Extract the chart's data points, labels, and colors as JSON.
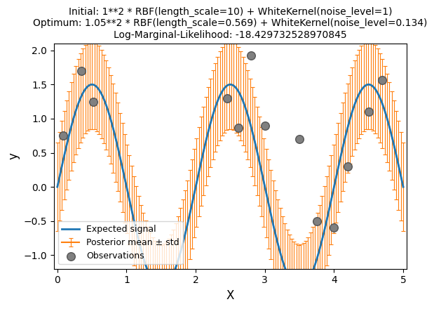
{
  "title_line1": "Initial: 1**2 * RBF(length_scale=10) + WhiteKernel(noise_level=1)",
  "title_line2": "Optimum: 1.05**2 * RBF(length_scale=0.569) + WhiteKernel(noise_level=0.134)",
  "title_line3": "Log-Marginal-Likelihood: -18.429732528970845",
  "xlabel": "X",
  "ylabel": "y",
  "xlim": [
    -0.05,
    5.05
  ],
  "ylim": [
    -1.2,
    2.1
  ],
  "signal_color": "#1f77b4",
  "posterior_color": "#ff7f0e",
  "obs_color": "#808080",
  "obs_edgecolor": "#555555",
  "legend_labels": [
    "Expected signal",
    "Observations",
    "Posterior mean ± std"
  ],
  "x_true_start": 0,
  "x_true_end": 5,
  "n_true": 1000,
  "amplitude": 1.5,
  "angular_freq": 3.14159265358979,
  "obs_x": [
    0.08,
    0.35,
    0.52,
    2.45,
    2.62,
    2.8,
    3.0,
    3.5,
    3.75,
    4.0,
    4.2,
    4.5,
    4.7
  ],
  "obs_y": [
    0.75,
    1.7,
    1.25,
    1.3,
    0.87,
    1.93,
    0.9,
    0.7,
    -0.5,
    -0.6,
    0.3,
    1.1,
    1.56
  ],
  "n_posterior": 150,
  "posterior_std": 0.65,
  "errorbar_capsize": 2,
  "title_fontsize": 10,
  "axis_label_fontsize": 12,
  "figwidth": 6.0,
  "figheight": 4.5
}
